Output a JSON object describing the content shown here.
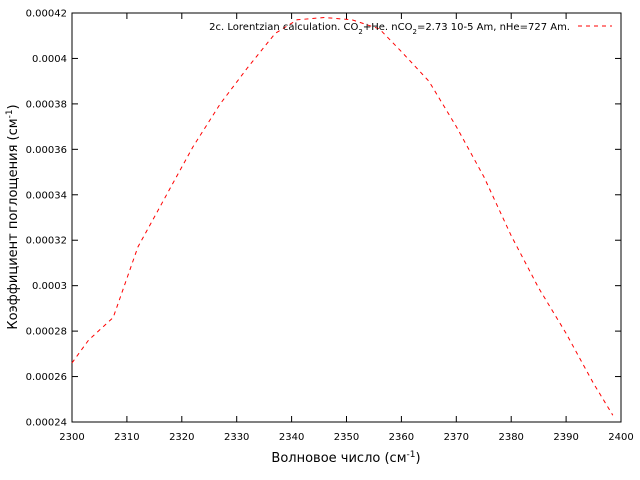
{
  "chart_data": {
    "type": "line",
    "xlabel": "Волновое число (см",
    "xlabel_sup": "-1",
    "xlabel_tail": ")",
    "ylabel": "Коэффициент поглощения (см",
    "ylabel_sup": "-1",
    "ylabel_tail": ")",
    "xlim": [
      2300,
      2400
    ],
    "ylim": [
      0.00024,
      0.00042
    ],
    "x_ticks": [
      "2300",
      "2310",
      "2320",
      "2330",
      "2340",
      "2350",
      "2360",
      "2370",
      "2380",
      "2390",
      "2400"
    ],
    "y_ticks": [
      "0.00024",
      "0.00026",
      "0.00028",
      "0.0003",
      "0.00032",
      "0.00034",
      "0.00036",
      "0.00038",
      "0.0004",
      "0.00042"
    ],
    "grid": false,
    "legend_position": "top-right",
    "series": [
      {
        "name": "2c. Lorentzian calculation. CO2+He. nCO2=2.73 10-5 Am, nHe=727 Am.",
        "legend_parts": {
          "a": "2c. Lorentzian calculation. CO",
          "sub1": "2",
          "b": "+He. nCO",
          "sub2": "2",
          "c": "=2.73 10-5 Am, nHe=727 Am."
        },
        "color": "#ff0000",
        "line_style": "dashed",
        "x": [
          2300,
          2303,
          2307.5,
          2312,
          2317,
          2322,
          2327,
          2332,
          2337,
          2341,
          2346,
          2351,
          2356,
          2360,
          2365,
          2370,
          2375,
          2380,
          2385,
          2390,
          2395,
          2398.5
        ],
        "y": [
          0.000266,
          0.000276,
          0.000286,
          0.000317,
          0.000339,
          0.000361,
          0.00038,
          0.000396,
          0.000411,
          0.000417,
          0.000418,
          0.000417,
          0.000413,
          0.000403,
          0.00039,
          0.00037,
          0.000348,
          0.000322,
          0.000299,
          0.000279,
          0.000257,
          0.000243
        ]
      }
    ]
  }
}
